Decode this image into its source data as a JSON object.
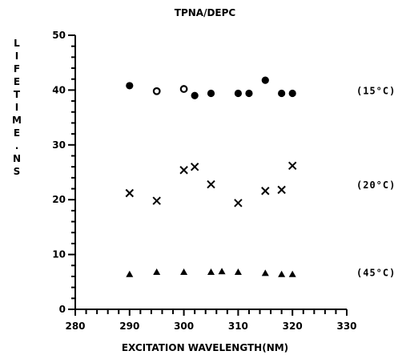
{
  "chart_data": {
    "type": "scatter",
    "title": "TPNA/DEPC",
    "xlabel": "EXCITATION WAVELENGTH(NM)",
    "ylabel": "LIFETIME.NS",
    "xlim": [
      280,
      330
    ],
    "ylim": [
      0,
      50
    ],
    "x_ticks": [
      "280",
      "290",
      "300",
      "310",
      "320",
      "330"
    ],
    "y_ticks": [
      "0",
      "10",
      "20",
      "30",
      "40",
      "50"
    ],
    "grid": false,
    "series": [
      {
        "marker": "circle",
        "annotation": "(15°C)",
        "points": [
          {
            "x": 290,
            "y": 40.8
          },
          {
            "x": 295,
            "y": 39.8,
            "open": true
          },
          {
            "x": 300,
            "y": 40.2,
            "open": true
          },
          {
            "x": 302,
            "y": 39.0
          },
          {
            "x": 305,
            "y": 39.4
          },
          {
            "x": 310,
            "y": 39.4
          },
          {
            "x": 312,
            "y": 39.4
          },
          {
            "x": 315,
            "y": 41.8
          },
          {
            "x": 318,
            "y": 39.4
          },
          {
            "x": 320,
            "y": 39.4
          }
        ]
      },
      {
        "marker": "cross",
        "annotation": "(20°C)",
        "points": [
          {
            "x": 290,
            "y": 21.2
          },
          {
            "x": 295,
            "y": 19.8
          },
          {
            "x": 300,
            "y": 25.4
          },
          {
            "x": 302,
            "y": 26.0
          },
          {
            "x": 305,
            "y": 22.8
          },
          {
            "x": 310,
            "y": 19.4
          },
          {
            "x": 315,
            "y": 21.6
          },
          {
            "x": 318,
            "y": 21.8
          },
          {
            "x": 320,
            "y": 26.2
          }
        ]
      },
      {
        "marker": "triangle",
        "annotation": "(45°C)",
        "points": [
          {
            "x": 290,
            "y": 6.4
          },
          {
            "x": 295,
            "y": 6.8
          },
          {
            "x": 300,
            "y": 6.8
          },
          {
            "x": 305,
            "y": 6.8
          },
          {
            "x": 307,
            "y": 6.9
          },
          {
            "x": 310,
            "y": 6.8
          },
          {
            "x": 315,
            "y": 6.6
          },
          {
            "x": 318,
            "y": 6.4
          },
          {
            "x": 320,
            "y": 6.4
          }
        ]
      }
    ]
  }
}
